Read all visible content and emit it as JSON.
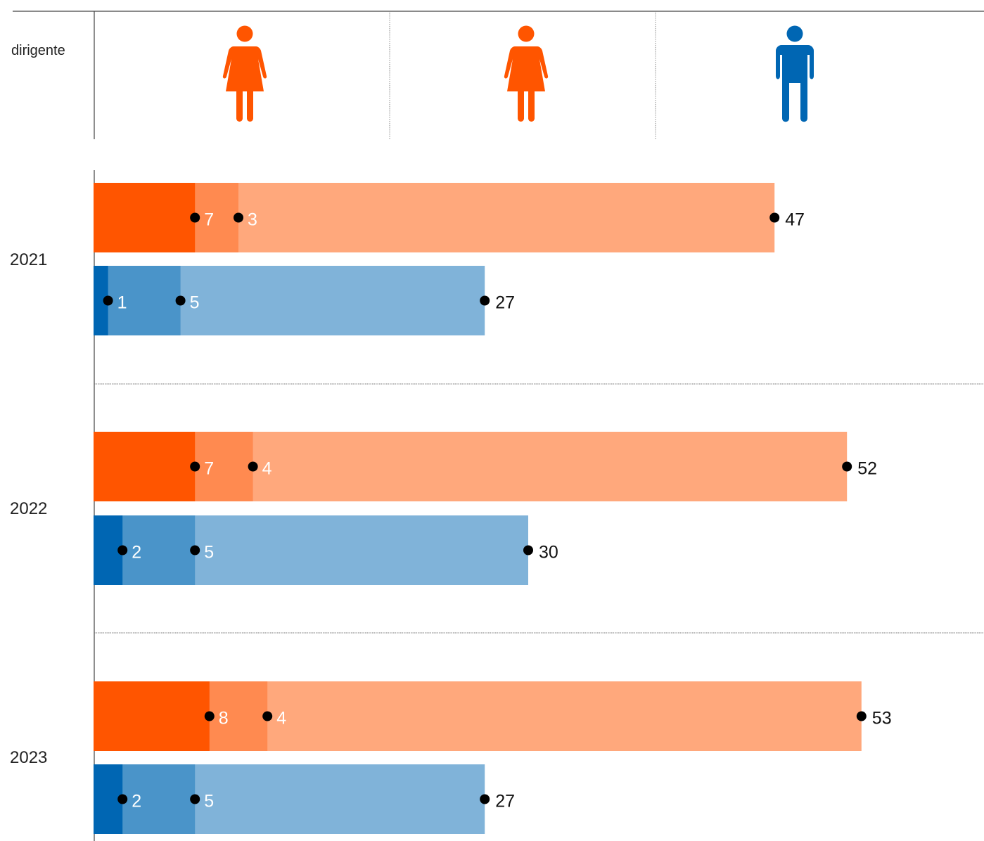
{
  "header": {
    "label": "dirigente",
    "icons": [
      {
        "name": "female-icon",
        "color": "#FF5500"
      },
      {
        "name": "female-icon",
        "color": "#FF5500"
      },
      {
        "name": "male-icon",
        "color": "#0066B3"
      }
    ]
  },
  "colors": {
    "female": [
      "#FF5500",
      "#FF8A50",
      "#FFA87C"
    ],
    "male": [
      "#0066B3",
      "#4A94C9",
      "#80B3D9"
    ],
    "dot": "#000000",
    "label_on_bar": "#FFFFFF",
    "label_outside": "#111111"
  },
  "chart_data": {
    "type": "bar",
    "orientation": "horizontal",
    "stacked": "cumulative",
    "categories": [
      "2021",
      "2022",
      "2023"
    ],
    "series": [
      {
        "group": "female",
        "values": [
          [
            7,
            3,
            47
          ],
          [
            7,
            4,
            52
          ],
          [
            8,
            4,
            53
          ]
        ]
      },
      {
        "group": "male",
        "values": [
          [
            1,
            5,
            27
          ],
          [
            2,
            5,
            30
          ],
          [
            2,
            5,
            27
          ]
        ]
      }
    ]
  }
}
